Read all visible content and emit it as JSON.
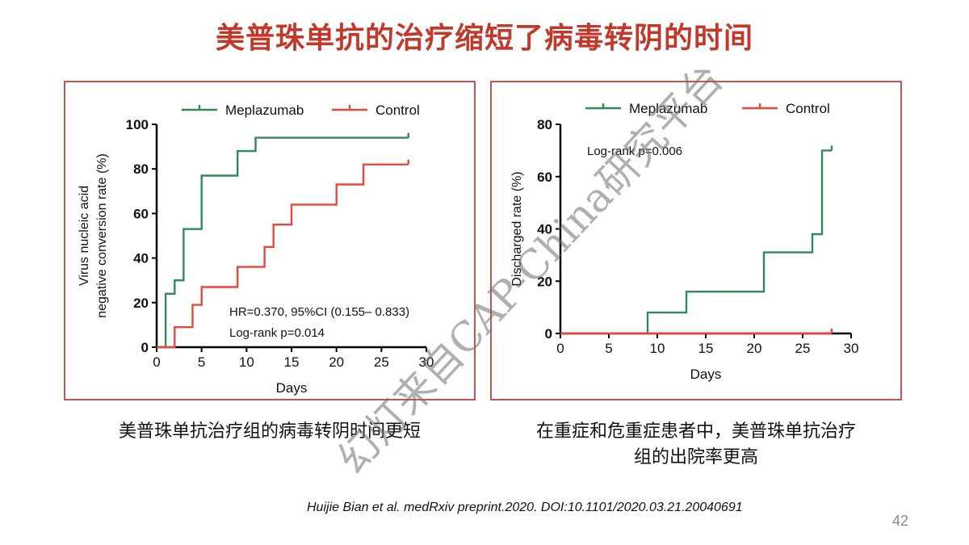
{
  "slide": {
    "title": "美普珠单抗的治疗缩短了病毒转阴的时间",
    "caption_left": "美普珠单抗治疗组的病毒转阴时间更短",
    "caption_right_line1": "在重症和危重症患者中，美普珠单抗治疗",
    "caption_right_line2": "组的出院率更高",
    "citation": "Huijie Bian et al. medRxiv preprint.2020. DOI:10.1101/2020.03.21.20040691",
    "page_number": "42",
    "watermark": "幻灯来自CAP-China研究平台"
  },
  "colors": {
    "title": "#c0392b",
    "panel_border": "#c9524e",
    "meplazumab": "#2e8b57",
    "control": "#e8473b"
  },
  "chart_data": [
    {
      "type": "line",
      "step": true,
      "ylabel_line1": "Virus nucleic acid",
      "ylabel_line2": "negative conversion rate (%)",
      "xlabel": "Days",
      "xlim": [
        0,
        30
      ],
      "ylim": [
        0,
        100
      ],
      "xticks": [
        0,
        5,
        10,
        15,
        20,
        25,
        30
      ],
      "yticks": [
        0,
        20,
        40,
        60,
        80,
        100
      ],
      "legend_position": "top",
      "annotations": [
        "HR=0.370, 95%CI (0.155– 0.833)",
        "Log-rank p=0.014"
      ],
      "series": [
        {
          "name": "Meplazumab",
          "color": "#2e8b57",
          "x": [
            0,
            1,
            1,
            2,
            2,
            3,
            3,
            5,
            5,
            9,
            9,
            11,
            11,
            28
          ],
          "y": [
            0,
            0,
            24,
            24,
            30,
            30,
            53,
            53,
            77,
            77,
            88,
            88,
            94,
            94
          ],
          "censor_x": [
            28
          ],
          "censor_y": [
            94
          ]
        },
        {
          "name": "Control",
          "color": "#e8473b",
          "x": [
            0,
            2,
            2,
            4,
            4,
            5,
            5,
            9,
            9,
            12,
            12,
            13,
            13,
            15,
            15,
            20,
            20,
            23,
            23,
            28
          ],
          "y": [
            0,
            0,
            9,
            9,
            19,
            19,
            27,
            27,
            36,
            36,
            45,
            45,
            55,
            55,
            64,
            64,
            73,
            73,
            82,
            82
          ],
          "censor_x": [
            28
          ],
          "censor_y": [
            82
          ]
        }
      ]
    },
    {
      "type": "line",
      "step": true,
      "ylabel": "Discharged rate (%)",
      "xlabel": "Days",
      "xlim": [
        0,
        30
      ],
      "ylim": [
        0,
        80
      ],
      "xticks": [
        0,
        5,
        10,
        15,
        20,
        25,
        30
      ],
      "yticks": [
        0,
        20,
        40,
        60,
        80
      ],
      "legend_position": "top",
      "annotations": [
        "Log-rank p=0.006"
      ],
      "series": [
        {
          "name": "Meplazumab",
          "color": "#2e8b57",
          "x": [
            0,
            9,
            9,
            13,
            13,
            21,
            21,
            26,
            26,
            27,
            27,
            28
          ],
          "y": [
            0,
            0,
            8,
            8,
            16,
            16,
            31,
            31,
            38,
            38,
            70,
            70
          ],
          "censor_x": [
            28
          ],
          "censor_y": [
            70
          ]
        },
        {
          "name": "Control",
          "color": "#e8473b",
          "x": [
            0,
            28
          ],
          "y": [
            0,
            0
          ],
          "censor_x": [
            28
          ],
          "censor_y": [
            0
          ]
        }
      ]
    }
  ]
}
